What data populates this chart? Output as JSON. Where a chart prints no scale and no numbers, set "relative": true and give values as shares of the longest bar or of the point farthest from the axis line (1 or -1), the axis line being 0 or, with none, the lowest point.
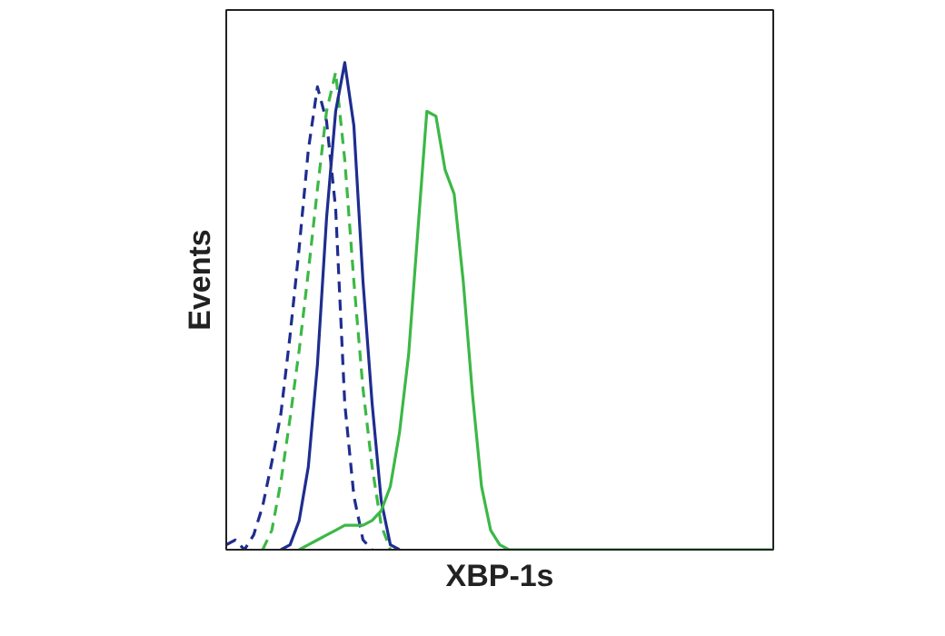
{
  "chart_data": {
    "type": "line",
    "relative": true,
    "xlabel": "XBP-1s",
    "ylabel": "Events",
    "marker": "none",
    "categories": [
      null,
      null,
      null,
      null,
      null,
      null,
      null,
      null,
      null,
      null,
      null,
      null,
      null,
      null,
      null,
      null,
      null,
      null,
      null,
      null,
      null,
      null,
      null,
      null,
      null,
      null,
      null,
      null,
      null,
      null,
      null,
      null,
      null,
      null,
      null,
      null,
      null,
      null,
      null,
      null,
      null,
      null,
      null,
      null,
      null,
      null,
      null,
      null,
      null,
      null,
      null,
      null,
      null,
      null,
      null,
      null,
      null,
      null,
      null,
      null,
      null
    ],
    "series": [
      {
        "color": "#1f2d8f",
        "line_style": "dashed",
        "values": [
          0.01,
          0.02,
          0,
          0.03,
          0.09,
          0.18,
          0.28,
          0.44,
          0.62,
          0.82,
          0.95,
          0.88,
          0.7,
          0.3,
          0.11,
          0.02,
          0,
          null,
          null,
          null,
          null,
          null,
          null,
          null,
          null,
          null,
          null,
          null,
          null,
          null,
          null,
          null,
          null,
          null,
          null,
          null,
          null,
          null,
          null,
          null,
          null,
          null,
          null,
          null,
          null,
          null,
          null,
          null,
          null,
          null,
          null,
          null,
          null,
          null,
          null,
          null,
          null,
          null,
          null,
          null,
          null
        ]
      },
      {
        "color": "#3cb846",
        "line_style": "dashed",
        "values": [
          null,
          null,
          null,
          null,
          0,
          0.04,
          0.14,
          0.27,
          0.41,
          0.57,
          0.74,
          0.9,
          0.98,
          0.8,
          0.55,
          0.33,
          0.17,
          0.05,
          0,
          null,
          null,
          null,
          null,
          null,
          null,
          null,
          null,
          null,
          null,
          null,
          null,
          null,
          null,
          null,
          null,
          null,
          null,
          null,
          null,
          null,
          null,
          null,
          null,
          null,
          null,
          null,
          null,
          null,
          null,
          null,
          null,
          null,
          null,
          null,
          null,
          null,
          null,
          null,
          null,
          null,
          null
        ]
      },
      {
        "color": "#1f2d8f",
        "line_style": "solid",
        "values": [
          null,
          null,
          null,
          null,
          null,
          null,
          0,
          0.01,
          0.06,
          0.17,
          0.38,
          0.68,
          0.9,
          1,
          0.87,
          0.55,
          0.3,
          0.1,
          0.01,
          0,
          null,
          null,
          null,
          null,
          null,
          null,
          null,
          null,
          null,
          null,
          null,
          null,
          null,
          null,
          null,
          null,
          null,
          null,
          null,
          null,
          null,
          null,
          null,
          null,
          null,
          null,
          null,
          null,
          null,
          null,
          null,
          null,
          null,
          null,
          null,
          null,
          null,
          null,
          null,
          null,
          null
        ]
      },
      {
        "color": "#3cb846",
        "line_style": "solid",
        "values": [
          null,
          null,
          null,
          null,
          null,
          null,
          null,
          null,
          0,
          0.01,
          0.02,
          0.03,
          0.04,
          0.05,
          0.05,
          0.05,
          0.06,
          0.08,
          0.13,
          0.24,
          0.4,
          0.65,
          0.9,
          0.89,
          0.78,
          0.73,
          0.55,
          0.32,
          0.13,
          0.04,
          0.01,
          0,
          0,
          0,
          0,
          0,
          0,
          0,
          0,
          0,
          0,
          0,
          0,
          0,
          0,
          0,
          0,
          0,
          0,
          0,
          0,
          0,
          0,
          0,
          0,
          0,
          0,
          0,
          0,
          0,
          0
        ]
      }
    ]
  }
}
